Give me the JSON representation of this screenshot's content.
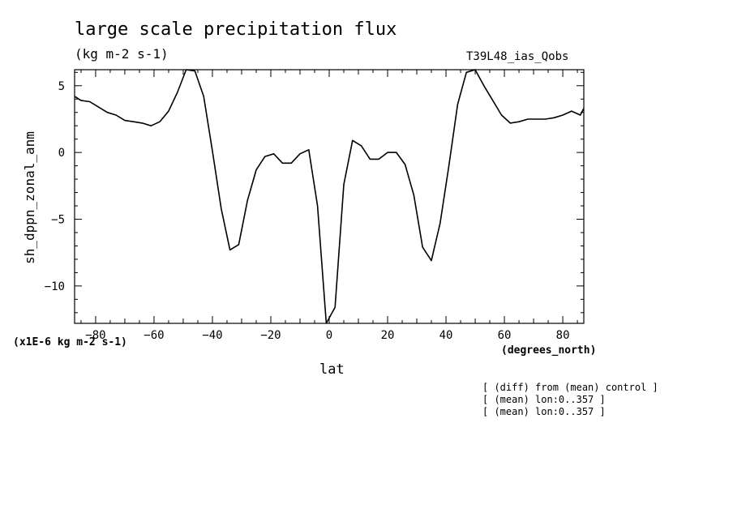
{
  "header": {
    "title": "large scale precipitation flux",
    "units": "(kg m-2 s-1)",
    "run": "T39L48_ias_Qobs"
  },
  "footer": {
    "scale_note": "(x1E-6 kg m-2 s-1)",
    "notes": [
      "[ (diff) from (mean) control ]",
      "[ (mean) lon:0..357 ]",
      "[ (mean) lon:0..357 ]"
    ]
  },
  "chart_data": {
    "type": "line",
    "title": "large scale precipitation flux",
    "subtitle": "(kg m-2 s-1)",
    "xlabel": "lat",
    "xunits": "(degrees_north)",
    "ylabel": "sh_dppn_zonal_anm",
    "xlim": [
      -87.2,
      87.2
    ],
    "ylim": [
      -12.8,
      6.2
    ],
    "xticks": [
      -80,
      -60,
      -40,
      -20,
      0,
      20,
      40,
      60,
      80
    ],
    "yticks": [
      5,
      0,
      -5,
      -10
    ],
    "grid": false,
    "line_color": "#000000",
    "series": [
      {
        "x": [
          -87.2,
          -85,
          -82,
          -79,
          -76,
          -73,
          -70,
          -67,
          -64,
          -61,
          -58,
          -55,
          -52,
          -49,
          -46,
          -43,
          -40,
          -37,
          -34,
          -31,
          -28,
          -25,
          -22,
          -19,
          -16,
          -13,
          -10,
          -7,
          -4,
          -1,
          2,
          5,
          8,
          11,
          14,
          17,
          20,
          23,
          26,
          29,
          32,
          35,
          38,
          41,
          44,
          47,
          50,
          53,
          56,
          59,
          62,
          65,
          68,
          71,
          74,
          77,
          80,
          83,
          86,
          87.2
        ],
        "y": [
          4.2,
          3.9,
          3.8,
          3.4,
          3.0,
          2.8,
          2.4,
          2.3,
          2.2,
          2.0,
          2.3,
          3.1,
          4.5,
          6.2,
          6.1,
          4.2,
          0.1,
          -4.2,
          -7.3,
          -6.9,
          -3.6,
          -1.3,
          -0.3,
          -0.1,
          -0.8,
          -0.8,
          -0.1,
          0.2,
          -4.0,
          -12.8,
          -11.6,
          -2.4,
          0.9,
          0.5,
          -0.5,
          -0.5,
          0.0,
          0.0,
          -0.9,
          -3.2,
          -7.1,
          -8.1,
          -5.3,
          -1.0,
          3.6,
          6.0,
          6.2,
          5.0,
          3.9,
          2.8,
          2.2,
          2.3,
          2.5,
          2.5,
          2.5,
          2.6,
          2.8,
          3.1,
          2.8,
          3.3
        ]
      }
    ]
  }
}
